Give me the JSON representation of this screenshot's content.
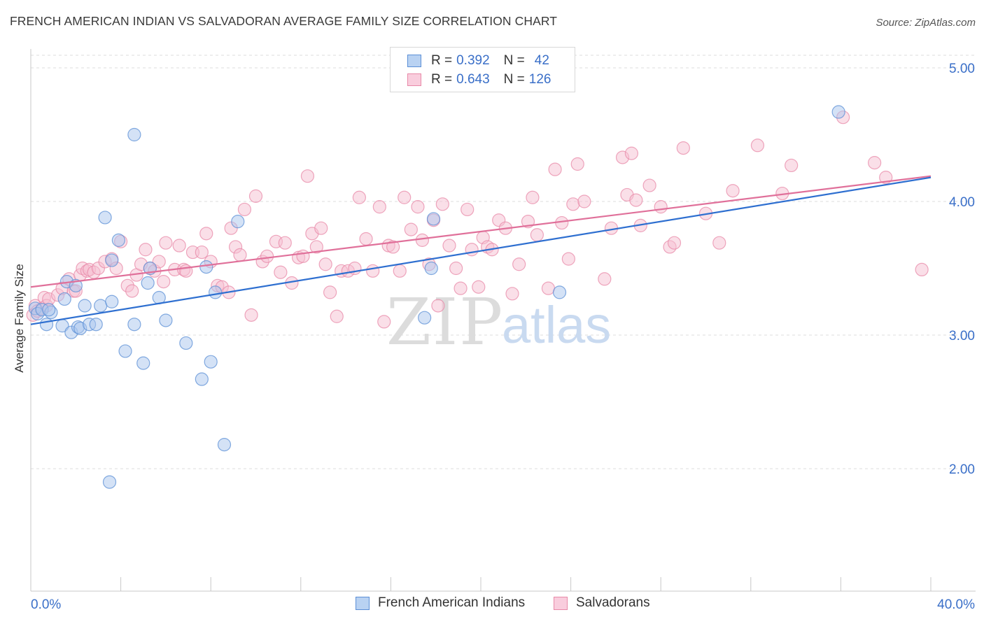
{
  "title": "FRENCH AMERICAN INDIAN VS SALVADORAN AVERAGE FAMILY SIZE CORRELATION CHART",
  "source": "Source: ZipAtlas.com",
  "watermark": {
    "zip": "ZIP",
    "atlas": "atlas"
  },
  "legend_top": {
    "rows": [
      {
        "r_label": "R =",
        "r_value": "0.392",
        "n_label": "N =",
        "n_value": "42"
      },
      {
        "r_label": "R =",
        "r_value": "0.643",
        "n_label": "N =",
        "n_value": "126"
      }
    ]
  },
  "legend_bottom": {
    "series1": "French American Indians",
    "series2": "Salvadorans"
  },
  "colors": {
    "blue_fill": "#a9c6ee",
    "blue_stroke": "#5b8fd6",
    "blue_line": "#2e6fd0",
    "pink_fill": "#f6c0d2",
    "pink_stroke": "#e889a8",
    "pink_line": "#e0709a",
    "tick_label": "#3a6fc8",
    "grid": "#dcdcdc"
  },
  "chart_data": {
    "type": "scatter",
    "title": "FRENCH AMERICAN INDIAN VS SALVADORAN AVERAGE FAMILY SIZE CORRELATION CHART",
    "xlabel": "",
    "ylabel": "Average Family Size",
    "xlim": [
      0,
      40
    ],
    "ylim": [
      1.0,
      5.1
    ],
    "x_tick_labels": [
      "0.0%",
      "40.0%"
    ],
    "y_ticks": [
      2.0,
      3.0,
      4.0,
      5.0
    ],
    "y_tick_labels": [
      "2.00",
      "3.00",
      "4.00",
      "5.00"
    ],
    "grid": true,
    "legend_placement": "top-center",
    "series": [
      {
        "name": "French American Indians",
        "color": "#a9c6ee",
        "r": 0.392,
        "n": 42,
        "trend": [
          [
            0,
            3.08
          ],
          [
            40,
            4.18
          ]
        ],
        "points": [
          [
            0.2,
            3.2
          ],
          [
            0.3,
            3.16
          ],
          [
            0.5,
            3.19
          ],
          [
            0.7,
            3.08
          ],
          [
            0.9,
            3.17
          ],
          [
            1.4,
            3.07
          ],
          [
            1.5,
            3.27
          ],
          [
            1.6,
            3.4
          ],
          [
            1.8,
            3.02
          ],
          [
            2.0,
            3.37
          ],
          [
            2.1,
            3.06
          ],
          [
            2.2,
            3.05
          ],
          [
            2.4,
            3.22
          ],
          [
            2.6,
            3.08
          ],
          [
            2.9,
            3.08
          ],
          [
            3.1,
            3.22
          ],
          [
            3.3,
            3.88
          ],
          [
            3.6,
            3.25
          ],
          [
            3.6,
            3.56
          ],
          [
            3.9,
            3.71
          ],
          [
            4.2,
            2.88
          ],
          [
            4.6,
            3.08
          ],
          [
            4.6,
            4.5
          ],
          [
            5.0,
            2.79
          ],
          [
            5.2,
            3.39
          ],
          [
            5.3,
            3.5
          ],
          [
            5.7,
            3.28
          ],
          [
            6.0,
            3.11
          ],
          [
            6.9,
            2.94
          ],
          [
            7.6,
            2.67
          ],
          [
            7.8,
            3.51
          ],
          [
            8.0,
            2.8
          ],
          [
            8.2,
            3.32
          ],
          [
            8.6,
            2.18
          ],
          [
            9.2,
            3.85
          ],
          [
            17.5,
            3.13
          ],
          [
            17.8,
            3.5
          ],
          [
            17.9,
            3.87
          ],
          [
            23.5,
            3.32
          ],
          [
            35.9,
            4.67
          ],
          [
            3.5,
            1.9
          ],
          [
            0.8,
            3.19
          ]
        ]
      },
      {
        "name": "Salvadorans",
        "color": "#f6c0d2",
        "r": 0.643,
        "n": 126,
        "trend": [
          [
            0,
            3.36
          ],
          [
            40,
            4.19
          ]
        ],
        "points": [
          [
            0.1,
            3.15
          ],
          [
            0.2,
            3.22
          ],
          [
            0.3,
            3.18
          ],
          [
            0.5,
            3.2
          ],
          [
            0.6,
            3.28
          ],
          [
            0.7,
            3.22
          ],
          [
            0.8,
            3.27
          ],
          [
            1.2,
            3.3
          ],
          [
            1.4,
            3.35
          ],
          [
            1.7,
            3.42
          ],
          [
            1.9,
            3.33
          ],
          [
            2.0,
            3.33
          ],
          [
            2.2,
            3.45
          ],
          [
            2.3,
            3.5
          ],
          [
            2.5,
            3.48
          ],
          [
            2.6,
            3.49
          ],
          [
            2.8,
            3.47
          ],
          [
            3.0,
            3.5
          ],
          [
            3.3,
            3.55
          ],
          [
            3.6,
            3.57
          ],
          [
            3.8,
            3.5
          ],
          [
            4.0,
            3.7
          ],
          [
            4.3,
            3.37
          ],
          [
            4.5,
            3.33
          ],
          [
            4.7,
            3.45
          ],
          [
            4.9,
            3.53
          ],
          [
            5.1,
            3.64
          ],
          [
            5.3,
            3.5
          ],
          [
            5.5,
            3.48
          ],
          [
            5.7,
            3.55
          ],
          [
            5.9,
            3.4
          ],
          [
            6.0,
            3.69
          ],
          [
            6.4,
            3.49
          ],
          [
            6.6,
            3.67
          ],
          [
            6.8,
            3.49
          ],
          [
            6.9,
            3.48
          ],
          [
            7.2,
            3.62
          ],
          [
            7.6,
            3.62
          ],
          [
            7.8,
            3.76
          ],
          [
            8.0,
            3.55
          ],
          [
            8.3,
            3.37
          ],
          [
            8.5,
            3.36
          ],
          [
            8.8,
            3.32
          ],
          [
            8.9,
            3.8
          ],
          [
            9.1,
            3.66
          ],
          [
            9.3,
            3.6
          ],
          [
            9.5,
            3.94
          ],
          [
            9.8,
            3.15
          ],
          [
            10.0,
            4.04
          ],
          [
            10.3,
            3.55
          ],
          [
            10.5,
            3.59
          ],
          [
            10.9,
            3.7
          ],
          [
            11.1,
            3.47
          ],
          [
            11.3,
            3.69
          ],
          [
            11.6,
            3.39
          ],
          [
            11.9,
            3.58
          ],
          [
            12.1,
            3.59
          ],
          [
            12.3,
            4.19
          ],
          [
            12.5,
            3.76
          ],
          [
            12.7,
            3.66
          ],
          [
            12.9,
            3.8
          ],
          [
            13.1,
            3.53
          ],
          [
            13.3,
            3.32
          ],
          [
            13.6,
            3.14
          ],
          [
            13.8,
            3.48
          ],
          [
            14.1,
            3.48
          ],
          [
            14.4,
            3.5
          ],
          [
            14.6,
            4.03
          ],
          [
            14.9,
            3.72
          ],
          [
            15.2,
            3.48
          ],
          [
            15.5,
            3.96
          ],
          [
            15.7,
            3.1
          ],
          [
            15.9,
            3.67
          ],
          [
            16.1,
            3.66
          ],
          [
            16.4,
            3.48
          ],
          [
            16.6,
            4.03
          ],
          [
            16.9,
            3.79
          ],
          [
            17.2,
            3.96
          ],
          [
            17.4,
            3.71
          ],
          [
            17.7,
            3.53
          ],
          [
            17.9,
            3.86
          ],
          [
            18.1,
            3.22
          ],
          [
            18.3,
            3.98
          ],
          [
            18.6,
            3.67
          ],
          [
            18.9,
            3.5
          ],
          [
            19.1,
            3.35
          ],
          [
            19.4,
            3.94
          ],
          [
            19.6,
            3.64
          ],
          [
            19.9,
            3.36
          ],
          [
            20.1,
            3.73
          ],
          [
            20.3,
            3.66
          ],
          [
            20.5,
            3.64
          ],
          [
            20.8,
            3.86
          ],
          [
            21.1,
            3.8
          ],
          [
            21.4,
            3.31
          ],
          [
            21.7,
            3.53
          ],
          [
            22.1,
            3.85
          ],
          [
            22.3,
            4.03
          ],
          [
            22.5,
            3.75
          ],
          [
            23.0,
            3.35
          ],
          [
            23.3,
            4.24
          ],
          [
            23.6,
            3.84
          ],
          [
            23.9,
            3.57
          ],
          [
            24.1,
            3.98
          ],
          [
            24.3,
            4.28
          ],
          [
            24.6,
            4.0
          ],
          [
            25.5,
            3.42
          ],
          [
            25.8,
            3.8
          ],
          [
            26.3,
            4.33
          ],
          [
            26.5,
            4.05
          ],
          [
            26.7,
            4.36
          ],
          [
            26.9,
            4.01
          ],
          [
            27.1,
            3.82
          ],
          [
            27.5,
            4.12
          ],
          [
            28.0,
            3.96
          ],
          [
            28.4,
            3.66
          ],
          [
            28.6,
            3.69
          ],
          [
            29.0,
            4.4
          ],
          [
            30.0,
            3.91
          ],
          [
            30.6,
            3.69
          ],
          [
            31.2,
            4.08
          ],
          [
            32.3,
            4.42
          ],
          [
            33.4,
            4.06
          ],
          [
            33.8,
            4.27
          ],
          [
            36.1,
            4.63
          ],
          [
            37.5,
            4.29
          ],
          [
            38.0,
            4.18
          ],
          [
            39.6,
            3.49
          ]
        ]
      }
    ]
  }
}
